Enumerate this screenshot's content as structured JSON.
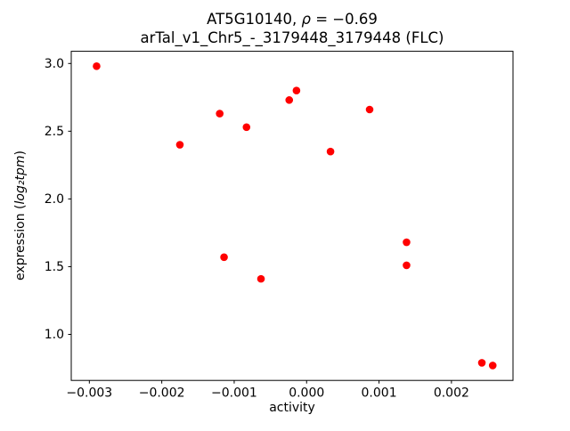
{
  "figure": {
    "title_prefix": "AT5G10140, ",
    "title_rho": "ρ",
    "title_rest": " = −0.69",
    "subtitle": "arTal_v1_Chr5_-_3179448_3179448 (FLC)"
  },
  "axes": {
    "xlabel": "activity",
    "ylabel_prefix": "expression (",
    "ylabel_math": "log₂tpm",
    "ylabel_suffix": ")"
  },
  "chart_data": {
    "type": "scatter",
    "title": "AT5G10140, ρ = −0.69",
    "subtitle": "arTal_v1_Chr5_-_3179448_3179448 (FLC)",
    "xlabel": "activity",
    "ylabel": "expression (log2tpm)",
    "legend": "none",
    "grid": false,
    "marker_color": "#ff0000",
    "marker_radius": 4.3,
    "xlim": [
      -0.00325,
      0.00285
    ],
    "ylim": [
      0.66,
      3.09
    ],
    "xticks": [
      -0.003,
      -0.002,
      -0.001,
      0,
      0.001,
      0.002
    ],
    "xtick_labels": [
      "−0.003",
      "−0.002",
      "−0.001",
      "0.000",
      "0.001",
      "0.002"
    ],
    "yticks": [
      1.0,
      1.5,
      2.0,
      2.5,
      3.0
    ],
    "ytick_labels": [
      "1.0",
      "1.5",
      "2.0",
      "2.5",
      "3.0"
    ],
    "points": [
      [
        -0.0029,
        2.98
      ],
      [
        -0.00175,
        2.4
      ],
      [
        -0.0012,
        2.63
      ],
      [
        -0.00114,
        1.57
      ],
      [
        -0.00083,
        2.53
      ],
      [
        -0.00063,
        1.41
      ],
      [
        -0.00024,
        2.73
      ],
      [
        -0.00014,
        2.8
      ],
      [
        0.00033,
        2.35
      ],
      [
        0.00087,
        2.66
      ],
      [
        0.00138,
        1.68
      ],
      [
        0.00138,
        1.51
      ],
      [
        0.00242,
        0.79
      ],
      [
        0.00257,
        0.77
      ]
    ]
  }
}
